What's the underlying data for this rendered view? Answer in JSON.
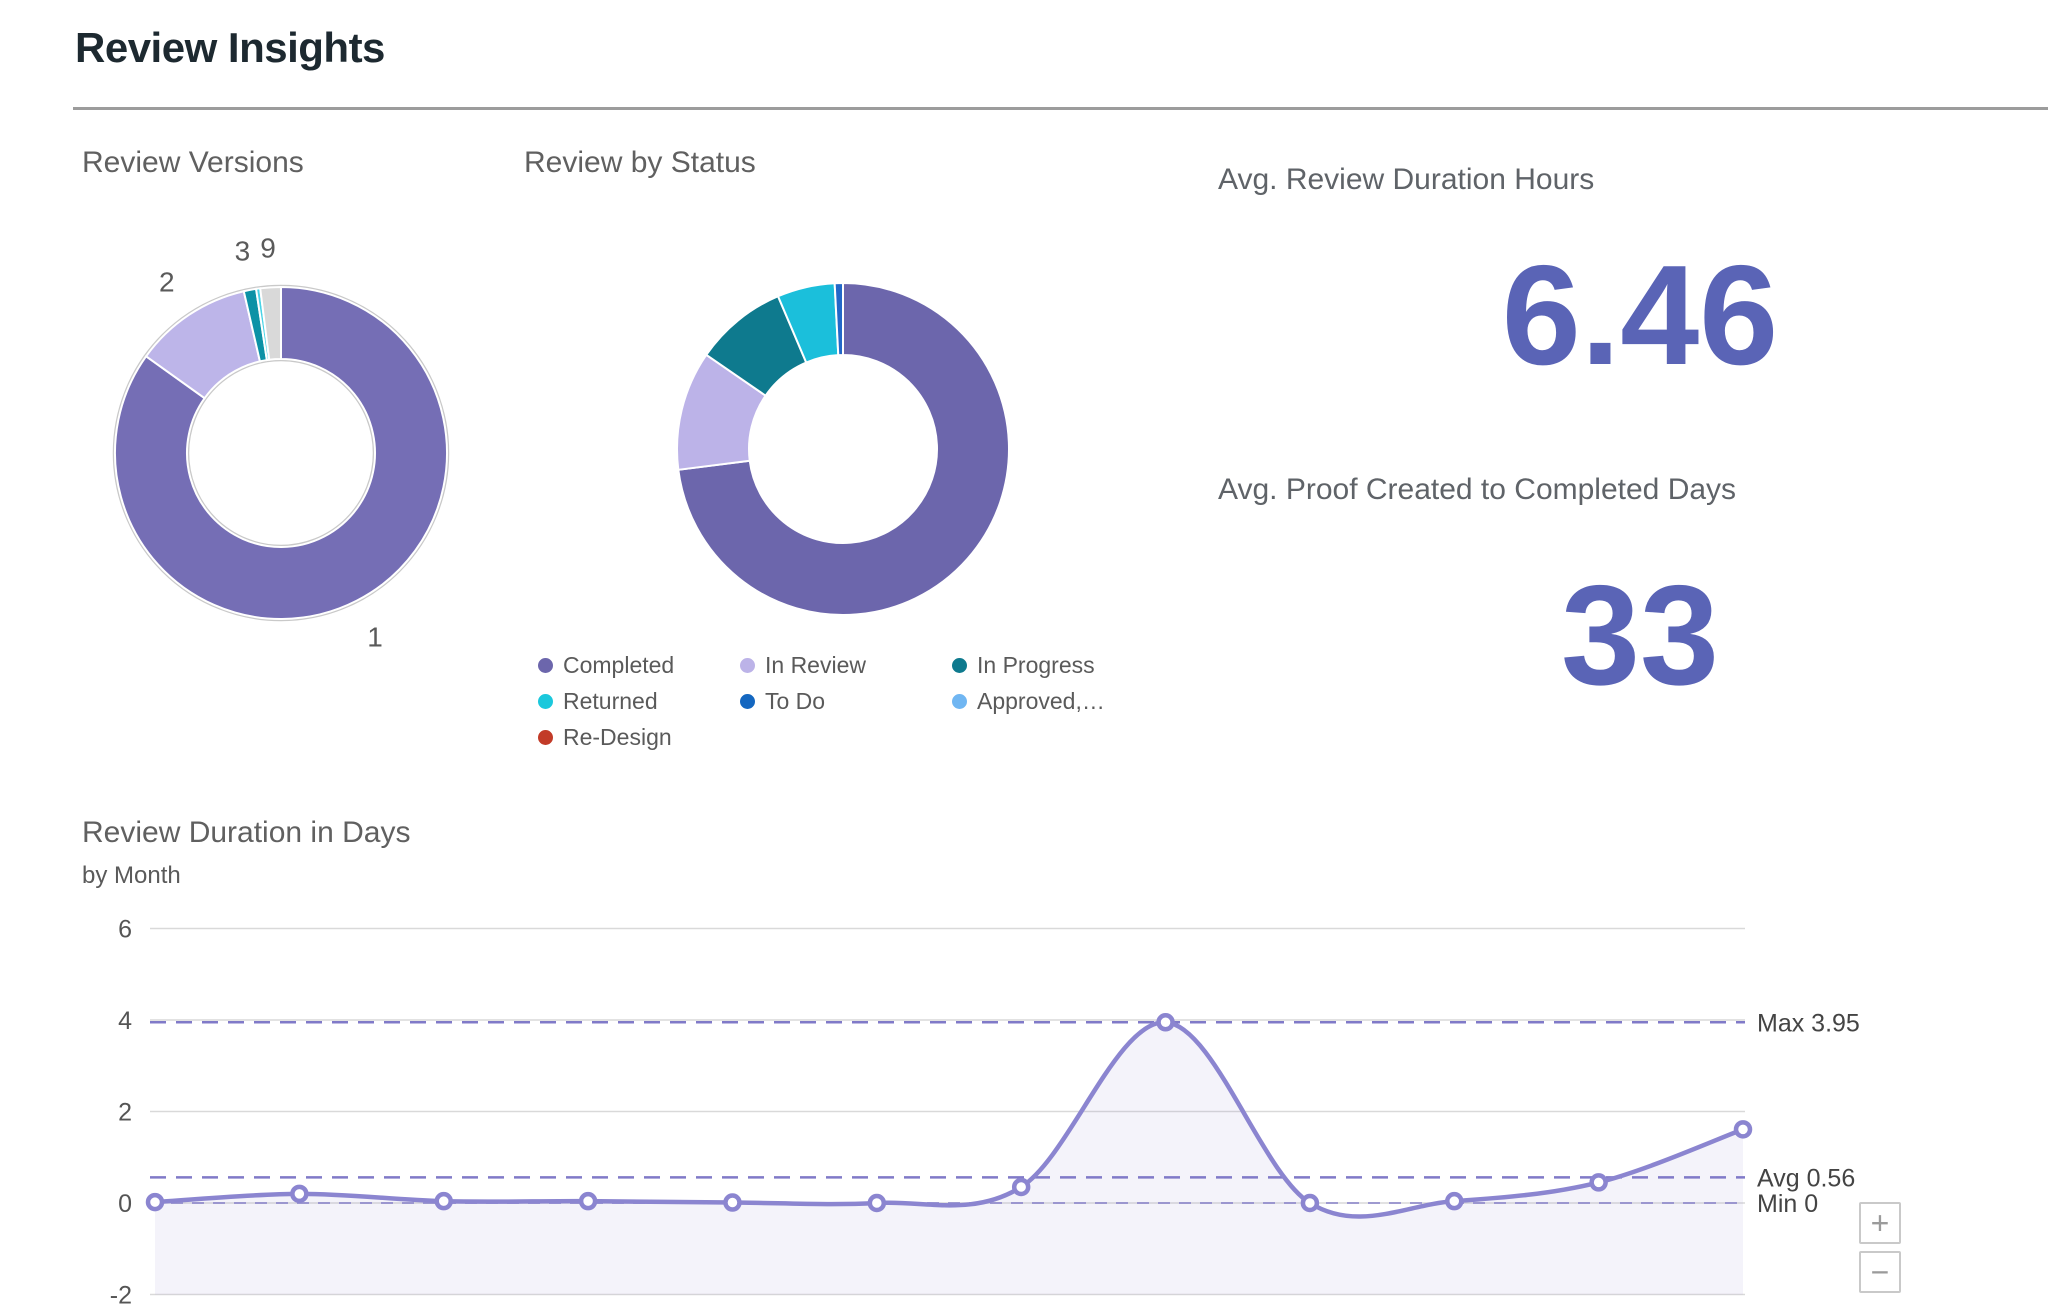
{
  "page": {
    "title": "Review Insights"
  },
  "kpis": [
    {
      "title": "Avg. Review Duration Hours",
      "value": "6.46",
      "color": "#5A64B6"
    },
    {
      "title": "Avg. Proof Created to Completed Days",
      "value": "33",
      "color": "#5A64B6"
    }
  ],
  "controls": {
    "zoom_in": "+",
    "zoom_out": "−"
  },
  "chart_data": [
    {
      "type": "pie",
      "donut": true,
      "title": "Review Versions",
      "segments": [
        {
          "label": "1",
          "pct": 84.9,
          "color": "#756EB5"
        },
        {
          "label": "2",
          "pct": 11.5,
          "color": "#BDB5E9"
        },
        {
          "label": "3",
          "pct": 1.2,
          "color": "#0C92A6"
        },
        {
          "label": "",
          "pct": 0.4,
          "color": "#49D3E6"
        },
        {
          "label": "9",
          "pct": 2.0,
          "color": "#D9D9D9"
        }
      ],
      "ring_outline_color": "#c9c9c9",
      "slice_label_color": "#5a5a5a"
    },
    {
      "type": "pie",
      "donut": true,
      "title": "Review by Status",
      "segments": [
        {
          "label": "Completed",
          "pct": 73.0,
          "color": "#6C66AC"
        },
        {
          "label": "In Review",
          "pct": 11.6,
          "color": "#BCB3E8"
        },
        {
          "label": "In Progress",
          "pct": 9.0,
          "color": "#0E7A8E"
        },
        {
          "label": "Returned",
          "pct": 5.6,
          "color": "#1BBFDB"
        },
        {
          "label": "To Do",
          "pct": 0.8,
          "color": "#2368C8"
        }
      ],
      "legend_position": "bottom",
      "legend": [
        {
          "label": "Completed",
          "color": "#6C66AC"
        },
        {
          "label": "In Review",
          "color": "#BCB3E8"
        },
        {
          "label": "In Progress",
          "color": "#0E7A8E"
        },
        {
          "label": "Returned",
          "color": "#1BC8DC"
        },
        {
          "label": "To Do",
          "color": "#1467C0"
        },
        {
          "label": "Approved,…",
          "color": "#70B6F2"
        },
        {
          "label": "Re-Design",
          "color": "#C23B28"
        }
      ]
    },
    {
      "type": "area",
      "title": "Review Duration in Days",
      "subtitle": "by Month",
      "values": [
        0.02,
        0.2,
        0.04,
        0.04,
        0.01,
        0,
        0.35,
        3.95,
        0,
        0.04,
        0.45,
        1.61
      ],
      "ylim": [
        -2,
        6
      ],
      "y_ticks": [
        6,
        4,
        2,
        0,
        -2
      ],
      "x_tick_labels_visible": false,
      "grid": true,
      "reference_lines": [
        {
          "label": "Max 3.95",
          "value": 3.95
        },
        {
          "label": "Avg 0.56",
          "value": 0.56
        },
        {
          "label": "Min 0",
          "value": 0
        }
      ],
      "line_color": "#8B85D0",
      "ref_line_color": "#807AC8",
      "grid_color": "#D9D9D9",
      "fill_color": "#8F89D1",
      "fill_opacity": 0.1,
      "axis_label_color": "#555555",
      "ref_label_color": "#444444"
    }
  ]
}
